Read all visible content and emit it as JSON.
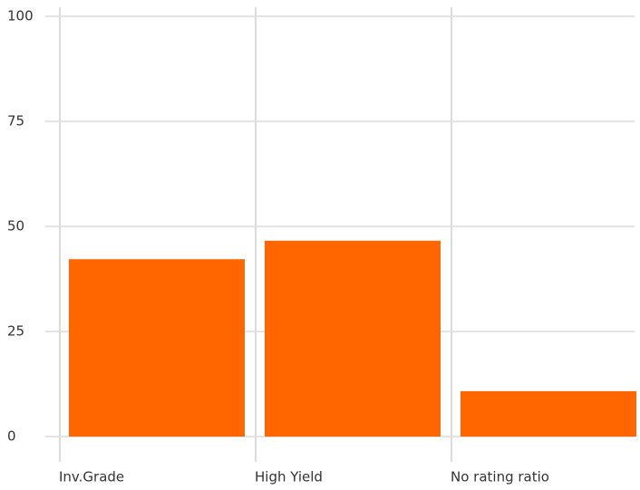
{
  "chart_data": {
    "type": "bar",
    "categories": [
      "Inv.Grade",
      "High Yield",
      "No rating ratio"
    ],
    "values": [
      42.2,
      46.6,
      10.8
    ],
    "color": "#ff6600",
    "ylim": [
      0,
      100
    ],
    "yticks": [
      0,
      25,
      50,
      75,
      100
    ],
    "grid": true
  }
}
